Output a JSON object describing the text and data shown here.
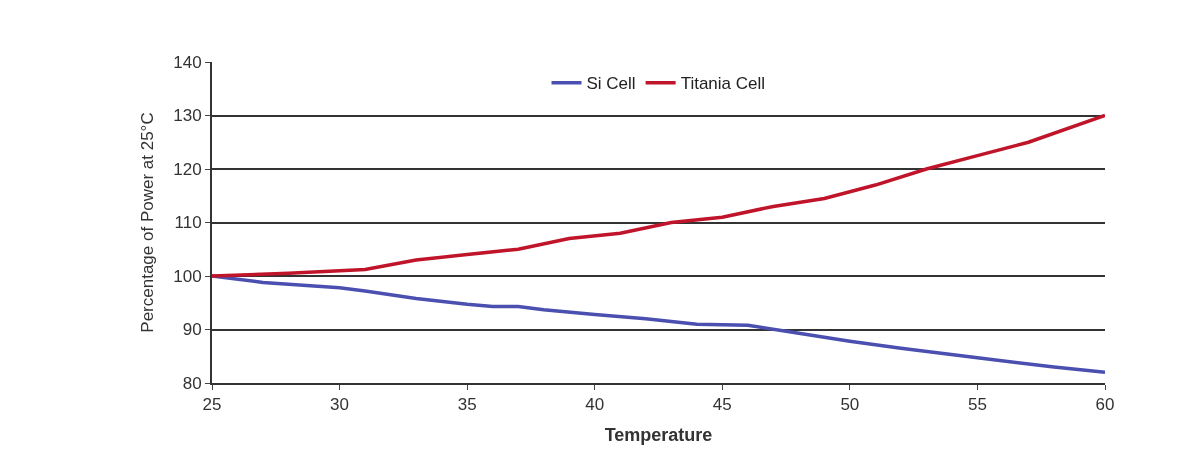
{
  "chart_data": {
    "type": "line",
    "xlabel": "Temperature",
    "ylabel": "Percentage of Power at 25°C",
    "xlim": [
      25,
      60
    ],
    "xticks": [
      25,
      30,
      35,
      40,
      45,
      50,
      55,
      60
    ],
    "ylim": [
      80,
      140
    ],
    "yticks": [
      80,
      90,
      100,
      110,
      120,
      130,
      140
    ],
    "grid": "y",
    "legend": "top",
    "marker": "none",
    "line_style": "solid",
    "series": [
      {
        "name": "Si Cell",
        "color": "#4b4fb0",
        "x": [
          25,
          27,
          30,
          31,
          33,
          35,
          36,
          37,
          38,
          40,
          42,
          44,
          46,
          48,
          50,
          52,
          55,
          58,
          60
        ],
        "values": [
          100,
          98.8,
          97.8,
          97.2,
          95.8,
          94.7,
          94.3,
          94.3,
          93.7,
          92.8,
          92,
          91,
          90.8,
          89.3,
          87.8,
          86.5,
          84.7,
          83,
          82
        ]
      },
      {
        "name": "Titania Cell",
        "color": "#c0142a",
        "x": [
          25,
          28,
          30,
          31,
          33,
          35,
          37,
          39,
          41,
          43,
          45,
          47,
          49,
          51,
          53,
          55,
          57,
          60
        ],
        "values": [
          100,
          100.5,
          101,
          101.2,
          103,
          104,
          105,
          107,
          108,
          110,
          111,
          113,
          114.5,
          117,
          120,
          122.5,
          125,
          130
        ]
      }
    ]
  }
}
